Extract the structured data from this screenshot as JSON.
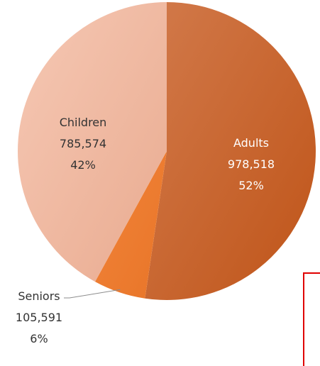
{
  "chart_data": {
    "type": "pie",
    "title": "",
    "slices": [
      {
        "label": "Adults",
        "value": 978518,
        "value_text": "978,518",
        "percent_text": "52%",
        "color": "#c9591c",
        "label_color": "#ffffff"
      },
      {
        "label": "Seniors",
        "value": 105591,
        "value_text": "105,591",
        "percent_text": "6%",
        "color": "#ed7d31",
        "label_color": "#333333"
      },
      {
        "label": "Children",
        "value": 785574,
        "value_text": "785,574",
        "percent_text": "42%",
        "color": "#f0b9a0",
        "label_color": "#333333"
      }
    ],
    "start": "12 o'clock",
    "direction": "clockwise",
    "legend": "none"
  }
}
